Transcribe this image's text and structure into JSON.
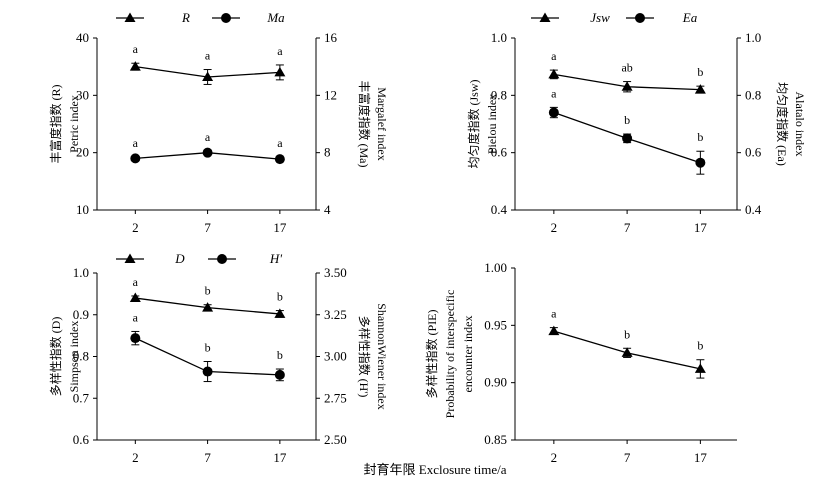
{
  "x_axis_title": "封育年限 Exclosure time/a",
  "chart_data": [
    {
      "type": "line",
      "categories": [
        "2",
        "7",
        "17"
      ],
      "ylabel_left": [
        "丰富度指数 (R)",
        "Petric index"
      ],
      "ylabel_right": [
        "丰富度指数 (Ma)",
        "Margalef index"
      ],
      "ylim_left": [
        10,
        40
      ],
      "yticks_left": [
        "10",
        "20",
        "30",
        "40"
      ],
      "ylim_right": [
        4,
        16
      ],
      "yticks_right": [
        "4",
        "8",
        "12",
        "16"
      ],
      "series": [
        {
          "name": "R",
          "axis": "left",
          "marker": "triangle",
          "values": [
            35.0,
            33.2,
            34.0
          ],
          "errors": [
            0.6,
            1.3,
            1.3
          ],
          "letters": [
            "a",
            "a",
            "a"
          ]
        },
        {
          "name": "Ma",
          "axis": "right",
          "marker": "circle",
          "values": [
            7.6,
            8.0,
            7.55
          ],
          "errors": [
            0.1,
            0.1,
            0.15
          ],
          "letters": [
            "a",
            "a",
            "a"
          ]
        }
      ]
    },
    {
      "type": "line",
      "categories": [
        "2",
        "7",
        "17"
      ],
      "ylabel_left": [
        "均匀度指数 (Jsw)",
        "Pielou index"
      ],
      "ylabel_right": [
        "均匀度指数 (Ea)",
        "Alatalo index"
      ],
      "ylim_left": [
        0.4,
        1.0
      ],
      "yticks_left": [
        "0.4",
        "0.6",
        "0.8",
        "1.0"
      ],
      "ylim_right": [
        0.4,
        1.0
      ],
      "yticks_right": [
        "0.4",
        "0.6",
        "0.8",
        "1.0"
      ],
      "series": [
        {
          "name": "Jsw",
          "axis": "left",
          "marker": "triangle",
          "values": [
            0.873,
            0.83,
            0.82
          ],
          "errors": [
            0.015,
            0.018,
            0.012
          ],
          "letters": [
            "a",
            "ab",
            "b"
          ]
        },
        {
          "name": "Ea",
          "axis": "right",
          "marker": "circle",
          "values": [
            0.74,
            0.65,
            0.565
          ],
          "errors": [
            0.018,
            0.015,
            0.04
          ],
          "letters": [
            "a",
            "b",
            "b"
          ]
        }
      ]
    },
    {
      "type": "line",
      "categories": [
        "2",
        "7",
        "17"
      ],
      "ylabel_left": [
        "多样性指数 (D)",
        "Simpson index"
      ],
      "ylabel_right": [
        "多样性指数 (H')",
        "ShannonWiener index"
      ],
      "ylim_left": [
        0.6,
        1.0
      ],
      "yticks_left": [
        "0.6",
        "0.7",
        "0.8",
        "0.9",
        "1.0"
      ],
      "ylim_right": [
        2.5,
        3.5
      ],
      "yticks_right": [
        "2.50",
        "2.75",
        "3.00",
        "3.25",
        "3.50"
      ],
      "series": [
        {
          "name": "D",
          "axis": "left",
          "marker": "triangle",
          "values": [
            0.94,
            0.917,
            0.902
          ],
          "errors": [
            0.005,
            0.007,
            0.008
          ],
          "letters": [
            "a",
            "b",
            "b"
          ]
        },
        {
          "name": "H'",
          "axis": "right",
          "marker": "circle",
          "values": [
            3.11,
            2.91,
            2.89
          ],
          "errors": [
            0.04,
            0.06,
            0.035
          ],
          "letters": [
            "a",
            "b",
            "b"
          ]
        }
      ]
    },
    {
      "type": "line",
      "categories": [
        "2",
        "7",
        "17"
      ],
      "ylabel_left": [
        "多样性指数 (PIE)",
        "Probability of interspecific",
        "encounter index"
      ],
      "ylim_left": [
        0.85,
        1.0
      ],
      "yticks_left": [
        "0.85",
        "0.90",
        "0.95",
        "1.00"
      ],
      "series": [
        {
          "name": "PIE",
          "axis": "left",
          "marker": "triangle",
          "values": [
            0.945,
            0.926,
            0.912
          ],
          "errors": [
            0.003,
            0.004,
            0.008
          ],
          "letters": [
            "a",
            "b",
            "b"
          ]
        }
      ]
    }
  ]
}
